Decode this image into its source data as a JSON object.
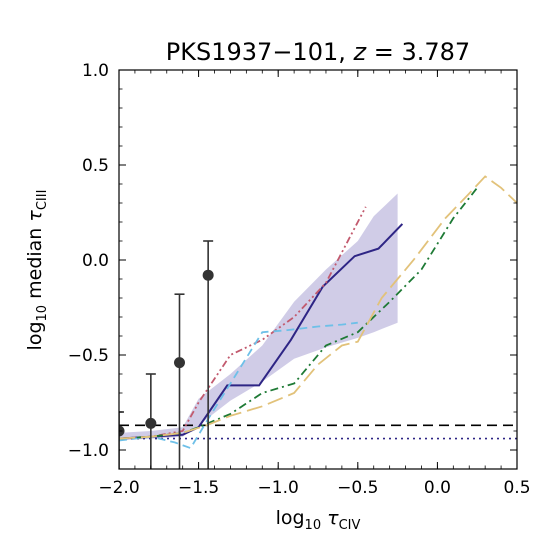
{
  "chart_data": {
    "type": "line",
    "title": "PKS1937−101, z = 3.787",
    "xlabel": "log10 τCIV",
    "ylabel": "log10 median τCIII",
    "xlim": [
      -2.0,
      0.5
    ],
    "ylim": [
      -1.1,
      1.0
    ],
    "xticks": [
      -2.0,
      -1.5,
      -1.0,
      -0.5,
      0.0,
      0.5
    ],
    "xtick_labels": [
      "−2.0",
      "−1.5",
      "−1.0",
      "−0.5",
      "0.0",
      "0.5"
    ],
    "yticks": [
      -1.0,
      -0.5,
      0.0,
      0.5,
      1.0
    ],
    "ytick_labels": [
      "−1.0",
      "−0.5",
      "0.0",
      "0.5",
      "1.0"
    ],
    "grid": false,
    "band": {
      "x": [
        -2.0,
        -1.8,
        -1.6,
        -1.5,
        -1.3,
        -1.1,
        -0.9,
        -0.7,
        -0.5,
        -0.4,
        -0.25
      ],
      "lower": [
        -0.95,
        -0.94,
        -0.93,
        -0.87,
        -0.74,
        -0.64,
        -0.52,
        -0.46,
        -0.41,
        -0.38,
        -0.33
      ],
      "upper": [
        -0.91,
        -0.9,
        -0.88,
        -0.73,
        -0.6,
        -0.45,
        -0.22,
        -0.05,
        0.1,
        0.23,
        0.35
      ]
    },
    "series": [
      {
        "style": "solid",
        "color": "#2e2585",
        "x": [
          -2.0,
          -1.8,
          -1.6,
          -1.5,
          -1.32,
          -1.12,
          -0.92,
          -0.72,
          -0.52,
          -0.37,
          -0.22
        ],
        "y": [
          -0.94,
          -0.93,
          -0.92,
          -0.88,
          -0.66,
          -0.66,
          -0.42,
          -0.14,
          0.02,
          0.06,
          0.19
        ]
      },
      {
        "style": "dash-dot-dot",
        "color": "#c25a6e",
        "x": [
          -2.0,
          -1.8,
          -1.6,
          -1.5,
          -1.3,
          -1.1,
          -0.9,
          -0.7,
          -0.55,
          -0.45
        ],
        "y": [
          -0.94,
          -0.93,
          -0.9,
          -0.75,
          -0.5,
          -0.42,
          -0.3,
          -0.12,
          0.12,
          0.28
        ]
      },
      {
        "style": "dashed",
        "color": "#6ec0e8",
        "x": [
          -2.0,
          -1.8,
          -1.65,
          -1.55,
          -1.45,
          -1.3,
          -1.1,
          -0.95,
          -0.75,
          -0.6,
          -0.5
        ],
        "y": [
          -0.95,
          -0.93,
          -0.96,
          -0.99,
          -0.85,
          -0.65,
          -0.38,
          -0.37,
          -0.35,
          -0.34,
          -0.33
        ]
      },
      {
        "style": "dash-dot",
        "color": "#1e7a35",
        "x": [
          -2.0,
          -1.8,
          -1.6,
          -1.5,
          -1.3,
          -1.1,
          -0.9,
          -0.7,
          -0.5,
          -0.3,
          -0.1,
          0.1,
          0.25
        ],
        "y": [
          -0.94,
          -0.93,
          -0.91,
          -0.88,
          -0.81,
          -0.7,
          -0.65,
          -0.45,
          -0.38,
          -0.22,
          -0.05,
          0.22,
          0.38
        ]
      },
      {
        "style": "long-dash",
        "color": "#e2c27a",
        "x": [
          -2.0,
          -1.8,
          -1.6,
          -1.45,
          -1.3,
          -1.1,
          -0.9,
          -0.75,
          -0.6,
          -0.5,
          -0.35,
          -0.15,
          0.05,
          0.2,
          0.3,
          0.4,
          0.5
        ],
        "y": [
          -0.94,
          -0.93,
          -0.91,
          -0.87,
          -0.82,
          -0.77,
          -0.7,
          -0.55,
          -0.45,
          -0.43,
          -0.2,
          0.0,
          0.22,
          0.35,
          0.44,
          0.38,
          0.3
        ]
      }
    ],
    "points": {
      "x": [
        -2.0,
        -1.8,
        -1.62,
        -1.44
      ],
      "y": [
        -0.9,
        -0.86,
        -0.54,
        -0.08
      ],
      "err_low": [
        -1.1,
        -1.1,
        -1.1,
        -1.1
      ],
      "err_high": [
        -0.8,
        -0.6,
        -0.18,
        0.1
      ],
      "color": "#333333"
    },
    "hlines": [
      {
        "y": -0.87,
        "style": "dashed",
        "color": "#000000"
      },
      {
        "y": -0.94,
        "style": "dotted",
        "color": "#2e2585"
      }
    ]
  }
}
